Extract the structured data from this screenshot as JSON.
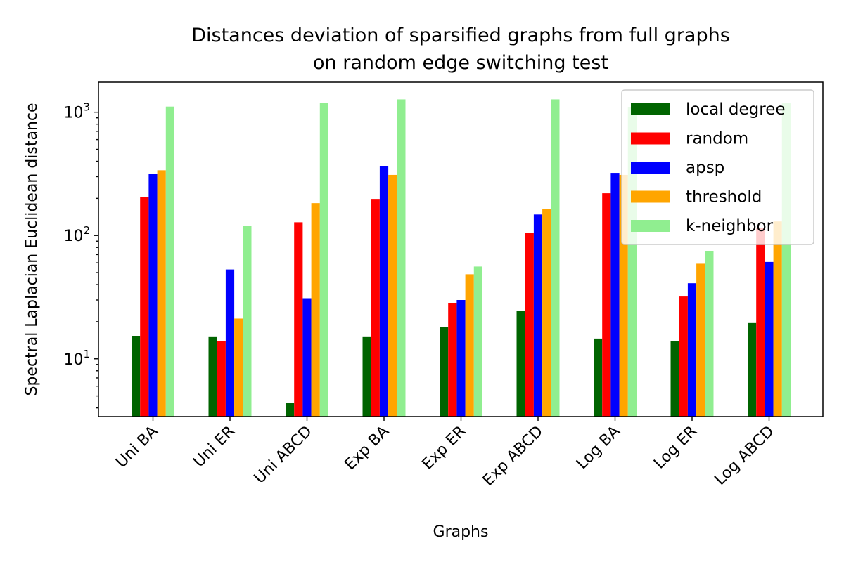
{
  "chart_data": {
    "type": "bar",
    "title": "Distances deviation of sparsified graphs from full graphs\non random edge switching test",
    "title_lines": [
      "Distances deviation of sparsified graphs from full graphs",
      "on random edge switching test"
    ],
    "xlabel": "Graphs",
    "ylabel": "Spectral Laplacian Euclidean distance",
    "yscale": "log",
    "ylim": [
      3.4,
      1750
    ],
    "yticks": [
      {
        "value": 10,
        "base": "10",
        "exp": "1"
      },
      {
        "value": 100,
        "base": "10",
        "exp": "2"
      },
      {
        "value": 1000,
        "base": "10",
        "exp": "3"
      }
    ],
    "categories": [
      "Uni BA",
      "Uni ER",
      "Uni ABCD",
      "Exp BA",
      "Exp ER",
      "Exp ABCD",
      "Log BA",
      "Log ER",
      "Log ABCD"
    ],
    "legend_position": "top-right",
    "grid": false,
    "series": [
      {
        "name": "local degree",
        "color": "#006400",
        "values": [
          15.2,
          15.0,
          4.4,
          15.0,
          18.0,
          24.5,
          14.6,
          14.0,
          19.5
        ]
      },
      {
        "name": "random",
        "color": "#ff0000",
        "values": [
          205,
          14.0,
          128,
          198,
          28.3,
          105,
          220,
          32.0,
          115
        ]
      },
      {
        "name": "apsp",
        "color": "#0000ff",
        "values": [
          315,
          53,
          31,
          365,
          30,
          148,
          322,
          41,
          61
        ]
      },
      {
        "name": "threshold",
        "color": "#ffa500",
        "values": [
          338,
          21.2,
          183,
          310,
          48.5,
          165,
          310,
          59,
          130
        ]
      },
      {
        "name": "k-neighbor",
        "color": "#90ee90",
        "values": [
          1110,
          120,
          1190,
          1270,
          56,
          1270,
          1100,
          75,
          1180
        ]
      }
    ]
  }
}
